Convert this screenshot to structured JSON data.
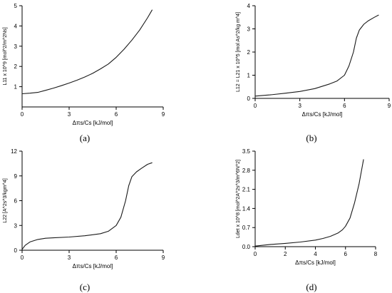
{
  "chart_data": [
    {
      "type": "line",
      "panel_label": "(a)",
      "title": "",
      "xlabel": "Δπs/Cs [kJ/mol]",
      "ylabel": "L11 x 10^9 [mol^2/m^2Ns]",
      "xlim": [
        0,
        9
      ],
      "ylim": [
        0,
        5
      ],
      "xticks": [
        "0",
        "3",
        "6",
        "9"
      ],
      "yticks": [
        "1",
        "2",
        "3",
        "4",
        "5"
      ],
      "grid": false,
      "series": [
        {
          "x": [
            0,
            0.5,
            1,
            1.5,
            2,
            2.5,
            3,
            3.5,
            4,
            4.5,
            5,
            5.5,
            6,
            6.5,
            7,
            7.5,
            8,
            8.3
          ],
          "y": [
            0.65,
            0.68,
            0.72,
            0.82,
            0.93,
            1.05,
            1.18,
            1.32,
            1.48,
            1.66,
            1.88,
            2.12,
            2.45,
            2.85,
            3.3,
            3.8,
            4.4,
            4.8
          ]
        }
      ]
    },
    {
      "type": "line",
      "panel_label": "(b)",
      "title": "",
      "xlabel": "Δπs/Cs [kJ/mol]",
      "ylabel": "L12 = L21 x 10^5 [mol As^2/kg m^4]",
      "xlim": [
        0,
        9
      ],
      "ylim": [
        0,
        4
      ],
      "xticks": [
        "0",
        "3",
        "6",
        "9"
      ],
      "yticks": [
        "0",
        "1",
        "2",
        "3",
        "4"
      ],
      "grid": false,
      "series": [
        {
          "x": [
            0,
            1,
            2,
            3,
            4,
            5,
            5.5,
            6,
            6.3,
            6.6,
            6.8,
            7,
            7.3,
            7.6,
            8,
            8.3
          ],
          "y": [
            0.1,
            0.15,
            0.22,
            0.3,
            0.42,
            0.62,
            0.75,
            1.0,
            1.4,
            2.0,
            2.6,
            2.95,
            3.2,
            3.35,
            3.5,
            3.6
          ]
        }
      ]
    },
    {
      "type": "line",
      "panel_label": "(c)",
      "title": "",
      "xlabel": "Δπs/Cs [kJ/mol]",
      "ylabel": "L22 [A^2s^3/kgm^4]",
      "xlim": [
        0,
        9
      ],
      "ylim": [
        0,
        12
      ],
      "xticks": [
        "0",
        "3",
        "6",
        "9"
      ],
      "yticks": [
        "0",
        "3",
        "6",
        "9",
        "12"
      ],
      "grid": false,
      "series": [
        {
          "x": [
            0,
            0.2,
            0.5,
            1,
            1.5,
            2,
            3,
            4,
            5,
            5.5,
            6,
            6.3,
            6.6,
            6.8,
            7,
            7.3,
            7.6,
            8,
            8.3
          ],
          "y": [
            0.1,
            0.6,
            1.0,
            1.3,
            1.45,
            1.5,
            1.6,
            1.75,
            2.0,
            2.3,
            3.0,
            4.0,
            6.0,
            7.8,
            8.9,
            9.5,
            9.9,
            10.4,
            10.6
          ]
        }
      ]
    },
    {
      "type": "line",
      "panel_label": "(d)",
      "title": "",
      "xlabel": "Δπs/Cs [kJ/mol]",
      "ylabel": "Ldet x 10^8 [mol^2A^2s^3/m^6N^2]",
      "xlim": [
        0,
        8
      ],
      "ylim": [
        0,
        3.5
      ],
      "xticks": [
        "0",
        "2",
        "4",
        "6",
        "8"
      ],
      "yticks": [
        "0.0",
        "0.7",
        "1.4",
        "2.1",
        "2.8",
        "3.5"
      ],
      "grid": false,
      "series": [
        {
          "x": [
            0,
            0.5,
            1,
            2,
            3,
            4,
            4.5,
            5,
            5.5,
            5.8,
            6,
            6.3,
            6.6,
            6.9,
            7.2
          ],
          "y": [
            0.02,
            0.05,
            0.08,
            0.12,
            0.17,
            0.24,
            0.3,
            0.38,
            0.5,
            0.62,
            0.75,
            1.05,
            1.6,
            2.3,
            3.2
          ]
        }
      ]
    }
  ],
  "style": {
    "axis_color": "#000000",
    "line_color": "#1a1a1a"
  }
}
